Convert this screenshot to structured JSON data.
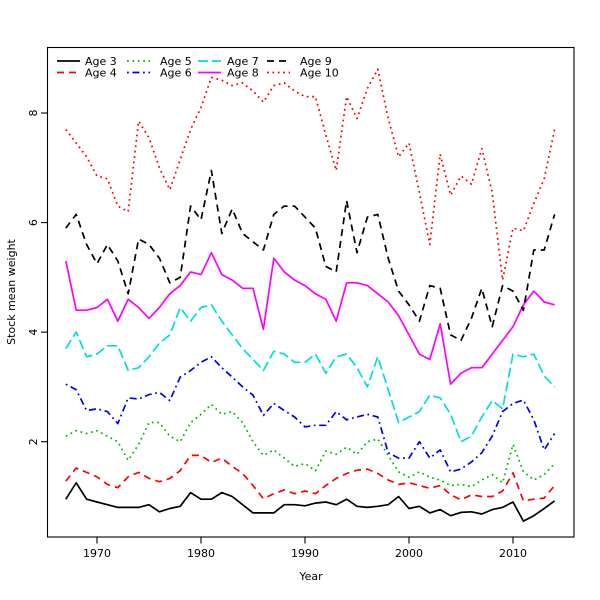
{
  "chart_data": {
    "type": "line",
    "title": "",
    "xlabel": "Year",
    "ylabel": "Stock mean weight",
    "x_ticks": [
      1970,
      1980,
      1990,
      2000,
      2010
    ],
    "y_ticks": [
      2,
      4,
      6,
      8
    ],
    "xlim": [
      1965.1,
      2015.9
    ],
    "ylim": [
      0.26,
      9.19
    ],
    "grid": false,
    "legend_position": "top-left",
    "legend_columns": 4,
    "years": [
      1967,
      1968,
      1969,
      1970,
      1971,
      1972,
      1973,
      1974,
      1975,
      1976,
      1977,
      1978,
      1979,
      1980,
      1981,
      1982,
      1983,
      1984,
      1985,
      1986,
      1987,
      1988,
      1989,
      1990,
      1991,
      1992,
      1993,
      1994,
      1995,
      1996,
      1997,
      1998,
      1999,
      2000,
      2001,
      2002,
      2003,
      2004,
      2005,
      2006,
      2007,
      2008,
      2009,
      2010,
      2011,
      2012,
      2013,
      2014
    ],
    "series": [
      {
        "name": "Age 3",
        "color": "#000000",
        "linestyle": "solid",
        "values": [
          0.95,
          1.25,
          0.95,
          0.9,
          0.85,
          0.8,
          0.8,
          0.8,
          0.85,
          0.72,
          0.78,
          0.82,
          1.07,
          0.95,
          0.95,
          1.07,
          1.0,
          0.85,
          0.7,
          0.7,
          0.7,
          0.85,
          0.85,
          0.83,
          0.88,
          0.9,
          0.85,
          0.95,
          0.82,
          0.8,
          0.82,
          0.85,
          1.0,
          0.78,
          0.82,
          0.7,
          0.76,
          0.65,
          0.71,
          0.72,
          0.68,
          0.76,
          0.8,
          0.9,
          0.55,
          0.65,
          0.78,
          0.92
        ]
      },
      {
        "name": "Age 4",
        "color": "#ff0000",
        "linestyle": "dashed",
        "values": [
          1.28,
          1.52,
          1.44,
          1.36,
          1.22,
          1.16,
          1.36,
          1.44,
          1.33,
          1.27,
          1.33,
          1.47,
          1.75,
          1.75,
          1.62,
          1.7,
          1.55,
          1.42,
          1.2,
          0.96,
          1.05,
          1.12,
          1.05,
          1.1,
          1.05,
          1.2,
          1.33,
          1.42,
          1.48,
          1.5,
          1.42,
          1.3,
          1.22,
          1.25,
          1.2,
          1.15,
          1.2,
          1.03,
          0.94,
          1.03,
          1.0,
          1.0,
          1.1,
          1.43,
          0.92,
          0.95,
          0.97,
          1.2
        ]
      },
      {
        "name": "Age 5",
        "color": "#00bb00",
        "linestyle": "dotted",
        "values": [
          2.1,
          2.2,
          2.15,
          2.2,
          2.1,
          2.0,
          1.66,
          1.95,
          2.35,
          2.35,
          2.1,
          2.0,
          2.35,
          2.5,
          2.68,
          2.5,
          2.55,
          2.35,
          2.0,
          1.75,
          1.85,
          1.7,
          1.55,
          1.6,
          1.47,
          1.83,
          1.77,
          1.9,
          1.77,
          2.0,
          2.05,
          1.75,
          1.45,
          1.35,
          1.45,
          1.35,
          1.3,
          1.2,
          1.22,
          1.18,
          1.3,
          1.4,
          1.25,
          1.95,
          1.45,
          1.3,
          1.4,
          1.6
        ]
      },
      {
        "name": "Age 6",
        "color": "#0000ee",
        "linestyle": "dashdot",
        "values": [
          3.05,
          2.95,
          2.57,
          2.6,
          2.55,
          2.33,
          2.8,
          2.78,
          2.86,
          2.9,
          2.75,
          3.18,
          3.3,
          3.45,
          3.55,
          3.35,
          3.18,
          3.0,
          2.85,
          2.48,
          2.7,
          2.57,
          2.45,
          2.27,
          2.3,
          2.3,
          2.55,
          2.4,
          2.45,
          2.5,
          2.45,
          1.8,
          1.7,
          1.7,
          2.0,
          1.7,
          1.85,
          1.45,
          1.5,
          1.63,
          1.8,
          2.1,
          2.55,
          2.7,
          2.76,
          2.4,
          1.85,
          2.15
        ]
      },
      {
        "name": "Age 7",
        "color": "#00dddd",
        "linestyle": "longdash",
        "values": [
          3.7,
          4.0,
          3.55,
          3.6,
          3.75,
          3.75,
          3.3,
          3.35,
          3.55,
          3.8,
          3.95,
          4.45,
          4.2,
          4.45,
          4.5,
          4.2,
          3.95,
          3.7,
          3.5,
          3.3,
          3.65,
          3.6,
          3.45,
          3.45,
          3.6,
          3.25,
          3.55,
          3.6,
          3.35,
          3.0,
          3.55,
          2.95,
          2.35,
          2.45,
          2.55,
          2.85,
          2.8,
          2.5,
          2.0,
          2.1,
          2.45,
          2.75,
          2.6,
          3.6,
          3.55,
          3.6,
          3.2,
          3.0
        ]
      },
      {
        "name": "Age 8",
        "color": "#ff00ff",
        "linestyle": "solid",
        "values": [
          5.3,
          4.4,
          4.4,
          4.45,
          4.6,
          4.2,
          4.6,
          4.45,
          4.25,
          4.45,
          4.7,
          4.85,
          5.1,
          5.05,
          5.45,
          5.05,
          4.95,
          4.8,
          4.8,
          4.05,
          5.35,
          5.1,
          4.95,
          4.85,
          4.7,
          4.6,
          4.2,
          4.9,
          4.9,
          4.85,
          4.7,
          4.55,
          4.3,
          3.95,
          3.6,
          3.5,
          4.15,
          3.05,
          3.25,
          3.35,
          3.35,
          3.6,
          3.85,
          4.1,
          4.5,
          4.75,
          4.55,
          4.5
        ]
      },
      {
        "name": "Age 9",
        "color": "#000000",
        "linestyle": "dashed",
        "values": [
          5.9,
          6.15,
          5.6,
          5.25,
          5.6,
          5.3,
          4.7,
          5.7,
          5.6,
          5.35,
          4.9,
          5.0,
          6.3,
          6.05,
          6.95,
          5.8,
          6.25,
          5.8,
          5.65,
          5.5,
          6.15,
          6.3,
          6.3,
          6.1,
          5.9,
          5.2,
          5.1,
          6.4,
          5.45,
          6.1,
          6.15,
          5.35,
          4.75,
          4.5,
          4.2,
          4.85,
          4.8,
          3.95,
          3.85,
          4.25,
          4.8,
          4.1,
          4.85,
          4.75,
          4.4,
          5.5,
          5.5,
          6.15
        ]
      },
      {
        "name": "Age 10",
        "color": "#ff0000",
        "linestyle": "dotted",
        "values": [
          7.7,
          7.45,
          7.2,
          6.85,
          6.8,
          6.3,
          6.2,
          7.85,
          7.55,
          7.0,
          6.6,
          7.15,
          7.7,
          8.1,
          8.65,
          8.6,
          8.5,
          8.55,
          8.4,
          8.2,
          8.5,
          8.55,
          8.4,
          8.3,
          8.3,
          7.6,
          6.95,
          8.3,
          7.9,
          8.45,
          8.8,
          7.9,
          7.2,
          7.45,
          6.55,
          5.6,
          7.25,
          6.5,
          6.85,
          6.7,
          7.35,
          6.55,
          4.95,
          5.9,
          5.85,
          6.35,
          6.8,
          7.7
        ]
      }
    ],
    "legend_labels": [
      "Age 3",
      "Age 4",
      "Age 5",
      "Age 6",
      "Age 7",
      "Age 8",
      "Age 9",
      "Age 10"
    ]
  }
}
